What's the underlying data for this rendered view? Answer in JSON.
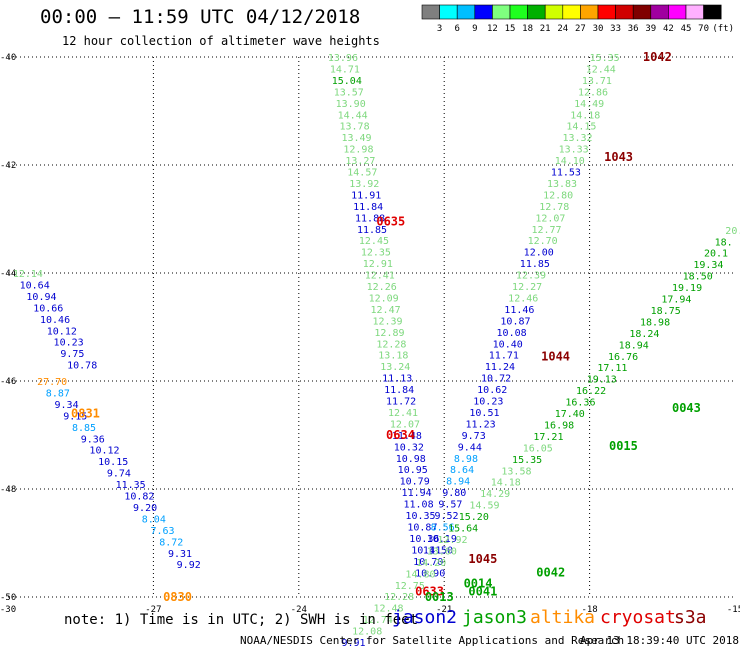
{
  "header": {
    "title": "00:00 — 11:59 UTC 04/12/2018",
    "subtitle": "12 hour collection of altimeter wave heights"
  },
  "colorbar": {
    "colors": [
      "#7f7f7f",
      "#00ffff",
      "#00bfff",
      "#0000ff",
      "#7fff7f",
      "#1fff1f",
      "#00b000",
      "#d0ff00",
      "#ffff00",
      "#ffa500",
      "#ff0000",
      "#d00000",
      "#800000",
      "#a000a0",
      "#ff00ff",
      "#ffb0ff",
      "#000000"
    ],
    "labels": [
      "3",
      "6",
      "9",
      "12",
      "15",
      "18",
      "21",
      "24",
      "27",
      "30",
      "33",
      "36",
      "39",
      "42",
      "45",
      "70",
      "(ft)"
    ],
    "label_slots": [
      1,
      2,
      3,
      4,
      5,
      6,
      7,
      8,
      9,
      10,
      11,
      12,
      13,
      14,
      15,
      16,
      17
    ]
  },
  "note": "note: 1) Time is in UTC; 2) SWH is in feet",
  "legend": [
    {
      "label": "jason2",
      "color": "#0000d0"
    },
    {
      "label": "jason3",
      "color": "#00a000"
    },
    {
      "label": "altika",
      "color": "#ff8c00"
    },
    {
      "label": "cryosat",
      "color": "#e00000"
    },
    {
      "label": "s3a",
      "color": "#8b0000"
    }
  ],
  "credit_left": "NOAA/NESDIS Center for Satellite Applications and Research",
  "credit_right": "Apr 13 18:39:40 UTC 2018",
  "chart_data": {
    "type": "scatter",
    "xlim": [
      -30,
      -15
    ],
    "ylim": [
      -50,
      -40
    ],
    "x_ticks": [
      "-30",
      "-27",
      "-24",
      "-21",
      "-18",
      "-15"
    ],
    "y_ticks": [
      "-40",
      "-42",
      "-44",
      "-46",
      "-48",
      "-50"
    ],
    "colors": {
      "a": "#7ed87e",
      "b": "#0000d0",
      "c": "#00a0ff",
      "d": "#00a000",
      "e": "#ff8c00",
      "f": "#e00000",
      "g": "#8b0000"
    },
    "tracks": [
      {
        "name": "",
        "x0": -29.9,
        "y0": -44.0,
        "dx": 0.14,
        "dy": 0.0,
        "labels": [
          [
            "12.14",
            "a"
          ],
          [
            "10.64",
            "b"
          ],
          [
            "10.94",
            "b"
          ],
          [
            "10.66",
            "b"
          ],
          [
            "10.46",
            "b"
          ],
          [
            "10.12",
            "b"
          ],
          [
            "10.23",
            "b"
          ],
          [
            "9.75",
            "b"
          ],
          [
            "10.78",
            "b"
          ]
        ]
      },
      {
        "name": "",
        "x0": -29.4,
        "y0": -46.0,
        "dx": 0.18,
        "dy": 0.0,
        "labels": [
          [
            "27.70",
            "e"
          ],
          [
            "8.87",
            "c"
          ],
          [
            "9.34",
            "b"
          ],
          [
            "9.15",
            "b"
          ],
          [
            "8.85",
            "c"
          ],
          [
            "9.36",
            "b"
          ],
          [
            "10.12",
            "b"
          ],
          [
            "10.15",
            "b"
          ],
          [
            "9.74",
            "b"
          ],
          [
            "11.35",
            "b"
          ],
          [
            "10.82",
            "b"
          ],
          [
            "9.20",
            "b"
          ],
          [
            "8.04",
            "c"
          ],
          [
            "7.63",
            "c"
          ],
          [
            "8.72",
            "c"
          ],
          [
            "9.31",
            "b"
          ],
          [
            "9.92",
            "b"
          ]
        ]
      },
      {
        "name": "",
        "x0": -23.4,
        "y0": -40.0,
        "dx": 0.04,
        "dy": 0.0,
        "labels": [
          [
            "13.96",
            "a"
          ],
          [
            "14.71",
            "a"
          ],
          [
            "15.04",
            "d"
          ],
          [
            "13.57",
            "a"
          ],
          [
            "13.90",
            "a"
          ],
          [
            "14.44",
            "a"
          ],
          [
            "13.78",
            "a"
          ],
          [
            "13.49",
            "a"
          ],
          [
            "12.98",
            "a"
          ],
          [
            "13.27",
            "a"
          ],
          [
            "14.57",
            "a"
          ],
          [
            "13.92",
            "a"
          ],
          [
            "11.91",
            "b"
          ],
          [
            "11.84",
            "b"
          ],
          [
            "11.88",
            "b"
          ],
          [
            "11.85",
            "b"
          ],
          [
            "12.45",
            "a"
          ],
          [
            "12.35",
            "a"
          ],
          [
            "12.91",
            "a"
          ],
          [
            "12.41",
            "a"
          ],
          [
            "12.26",
            "a"
          ],
          [
            "12.09",
            "a"
          ],
          [
            "12.47",
            "a"
          ],
          [
            "12.39",
            "a"
          ],
          [
            "12.89",
            "a"
          ],
          [
            "12.28",
            "a"
          ],
          [
            "13.18",
            "a"
          ],
          [
            "13.24",
            "a"
          ],
          [
            "11.13",
            "b"
          ],
          [
            "11.84",
            "b"
          ],
          [
            "11.72",
            "b"
          ],
          [
            "12.41",
            "a"
          ],
          [
            "12.07",
            "a"
          ],
          [
            "11.48",
            "b"
          ],
          [
            "10.32",
            "b"
          ],
          [
            "10.98",
            "b"
          ],
          [
            "10.95",
            "b"
          ],
          [
            "10.79",
            "b"
          ],
          [
            "11.94",
            "b"
          ],
          [
            "11.08",
            "b"
          ],
          [
            "10.35",
            "b"
          ],
          [
            "10.87",
            "b"
          ],
          [
            "10.36",
            "b"
          ],
          [
            "10.41",
            "b"
          ],
          [
            "10.70",
            "b"
          ],
          [
            "10.90",
            "b"
          ]
        ]
      },
      {
        "name": "",
        "x0": -18.0,
        "y0": -40.0,
        "dx": -0.08,
        "dy": 0.0,
        "labels": [
          [
            "15.35",
            "a"
          ],
          [
            "12.44",
            "a"
          ],
          [
            "13.71",
            "a"
          ],
          [
            "12.86",
            "a"
          ],
          [
            "14.49",
            "a"
          ],
          [
            "14.18",
            "a"
          ],
          [
            "14.15",
            "a"
          ],
          [
            "13.32",
            "a"
          ],
          [
            "13.33",
            "a"
          ],
          [
            "14.10",
            "a"
          ],
          [
            "11.53",
            "b"
          ],
          [
            "13.83",
            "a"
          ],
          [
            "12.80",
            "a"
          ],
          [
            "12.78",
            "a"
          ],
          [
            "12.07",
            "a"
          ],
          [
            "12.77",
            "a"
          ],
          [
            "12.70",
            "a"
          ],
          [
            "12.00",
            "b"
          ],
          [
            "11.85",
            "b"
          ],
          [
            "12.39",
            "a"
          ],
          [
            "12.27",
            "a"
          ],
          [
            "12.46",
            "a"
          ],
          [
            "11.46",
            "b"
          ],
          [
            "10.87",
            "b"
          ],
          [
            "10.08",
            "b"
          ],
          [
            "10.40",
            "b"
          ],
          [
            "11.71",
            "b"
          ],
          [
            "11.24",
            "b"
          ],
          [
            "10.72",
            "b"
          ],
          [
            "10.62",
            "b"
          ],
          [
            "10.23",
            "b"
          ],
          [
            "10.51",
            "b"
          ],
          [
            "11.23",
            "b"
          ],
          [
            "9.73",
            "b"
          ],
          [
            "9.44",
            "b"
          ],
          [
            "8.98",
            "c"
          ],
          [
            "8.64",
            "c"
          ],
          [
            "8.94",
            "c"
          ],
          [
            "9.80",
            "b"
          ],
          [
            "9.57",
            "b"
          ],
          [
            "9.52",
            "b"
          ],
          [
            "8.56",
            "c"
          ],
          [
            "10.19",
            "b"
          ],
          [
            "11.50",
            "b"
          ]
        ]
      },
      {
        "name": "",
        "x0": -15.2,
        "y0": -43.2,
        "dx": -0.22,
        "dy": 0.0,
        "labels": [
          [
            "20.",
            "a"
          ],
          [
            "18.",
            "d"
          ],
          [
            "20.1",
            "d"
          ],
          [
            "19.34",
            "d"
          ],
          [
            "18.50",
            "d"
          ],
          [
            "19.19",
            "d"
          ],
          [
            "17.94",
            "d"
          ],
          [
            "18.75",
            "d"
          ],
          [
            "18.98",
            "d"
          ],
          [
            "18.24",
            "d"
          ],
          [
            "18.94",
            "d"
          ],
          [
            "16.76",
            "d"
          ],
          [
            "17.11",
            "d"
          ],
          [
            "19.13",
            "d"
          ],
          [
            "16.22",
            "d"
          ],
          [
            "16.36",
            "d"
          ],
          [
            "17.40",
            "d"
          ],
          [
            "16.98",
            "d"
          ],
          [
            "17.21",
            "d"
          ],
          [
            "16.05",
            "a"
          ],
          [
            "15.35",
            "d"
          ],
          [
            "13.58",
            "a"
          ],
          [
            "14.18",
            "a"
          ],
          [
            "14.29",
            "a"
          ],
          [
            "14.59",
            "a"
          ],
          [
            "15.20",
            "d"
          ],
          [
            "15.64",
            "d"
          ],
          [
            "12.92",
            "a"
          ],
          [
            "13.60",
            "a"
          ],
          [
            "14.20",
            "a"
          ],
          [
            "14.80",
            "a"
          ],
          [
            "12.75",
            "a"
          ],
          [
            "12.28",
            "a"
          ],
          [
            "12.48",
            "a"
          ],
          [
            "12.74",
            "a"
          ],
          [
            "12.08",
            "a"
          ],
          [
            "9.91",
            "b"
          ]
        ]
      }
    ],
    "annotations": [
      {
        "text": "1042",
        "x": -16.9,
        "y": -40.0,
        "c": "g"
      },
      {
        "text": "1043",
        "x": -17.7,
        "y": -41.85,
        "c": "g"
      },
      {
        "text": "0635",
        "x": -22.4,
        "y": -43.05,
        "c": "f"
      },
      {
        "text": "1044",
        "x": -19.0,
        "y": -45.55,
        "c": "g"
      },
      {
        "text": "0634",
        "x": -22.2,
        "y": -47.0,
        "c": "f"
      },
      {
        "text": "0831",
        "x": -28.7,
        "y": -46.6,
        "c": "e"
      },
      {
        "text": "0043",
        "x": -16.3,
        "y": -46.5,
        "c": "d"
      },
      {
        "text": "0015",
        "x": -17.6,
        "y": -47.2,
        "c": "d"
      },
      {
        "text": "1045",
        "x": -20.5,
        "y": -49.3,
        "c": "g"
      },
      {
        "text": "0042",
        "x": -19.1,
        "y": -49.55,
        "c": "d"
      },
      {
        "text": "0014",
        "x": -20.6,
        "y": -49.75,
        "c": "d"
      },
      {
        "text": "0633",
        "x": -21.6,
        "y": -49.9,
        "c": "f"
      },
      {
        "text": "0041",
        "x": -20.5,
        "y": -49.9,
        "c": "d"
      },
      {
        "text": "0013",
        "x": -21.4,
        "y": -50.0,
        "c": "d"
      },
      {
        "text": "0830",
        "x": -26.8,
        "y": -50.0,
        "c": "e"
      }
    ]
  }
}
